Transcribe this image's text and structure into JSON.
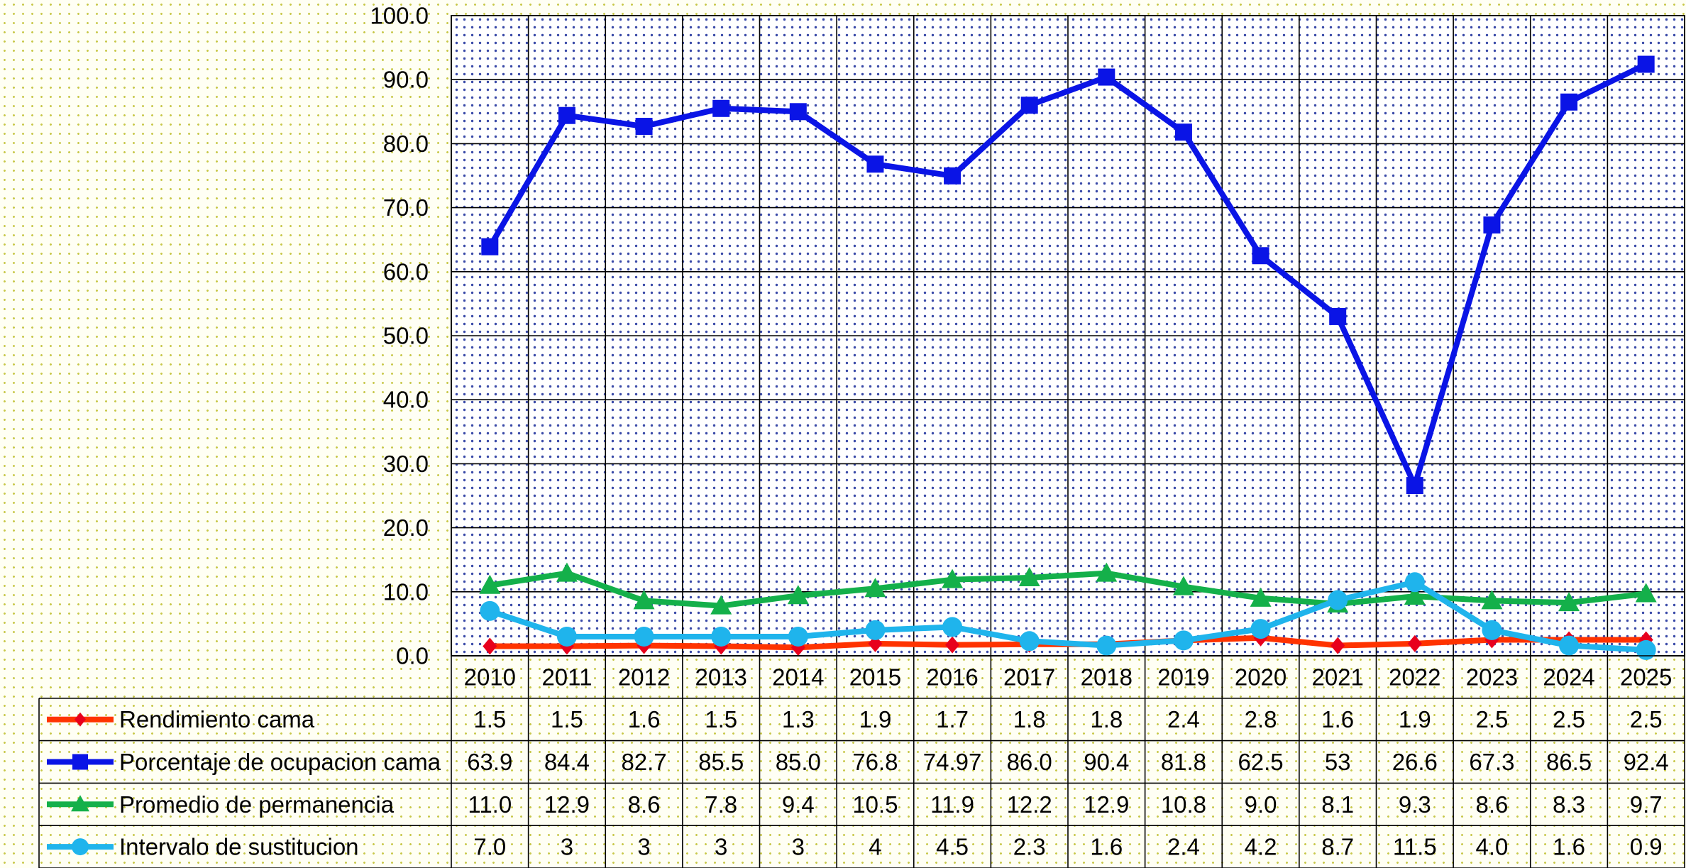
{
  "chart_data": {
    "type": "line",
    "title": "",
    "xlabel": "",
    "ylabel": "",
    "ylim": [
      0,
      100
    ],
    "y_ticks": [
      "0.0",
      "10.0",
      "20.0",
      "30.0",
      "40.0",
      "50.0",
      "60.0",
      "70.0",
      "80.0",
      "90.0",
      "100.0"
    ],
    "grid": true,
    "legend": "data-table",
    "categories": [
      "2010",
      "2011",
      "2012",
      "2013",
      "2014",
      "2015",
      "2016",
      "2017",
      "2018",
      "2019",
      "2020",
      "2021",
      "2022",
      "2023",
      "2024",
      "2025"
    ],
    "series": [
      {
        "name": "Rendimiento cama",
        "color": "#ff3300",
        "marker": "diamond",
        "marker_color": "#e8001c",
        "values": [
          1.5,
          1.5,
          1.6,
          1.5,
          1.3,
          1.9,
          1.7,
          1.8,
          1.8,
          2.4,
          2.8,
          1.6,
          1.9,
          2.5,
          2.5,
          2.5
        ],
        "labels": [
          "1.5",
          "1.5",
          "1.6",
          "1.5",
          "1.3",
          "1.9",
          "1.7",
          "1.8",
          "1.8",
          "2.4",
          "2.8",
          "1.6",
          "1.9",
          "2.5",
          "2.5",
          "2.5"
        ]
      },
      {
        "name": "Porcentaje de ocupacion cama",
        "color": "#0a14e6",
        "marker": "square",
        "marker_color": "#0a14e6",
        "values": [
          63.9,
          84.4,
          82.7,
          85.5,
          85.0,
          76.8,
          74.97,
          86.0,
          90.4,
          81.8,
          62.5,
          53,
          26.6,
          67.3,
          86.5,
          92.4
        ],
        "labels": [
          "63.9",
          "84.4",
          "82.7",
          "85.5",
          "85.0",
          "76.8",
          "74.97",
          "86.0",
          "90.4",
          "81.8",
          "62.5",
          "53",
          "26.6",
          "67.3",
          "86.5",
          "92.4"
        ]
      },
      {
        "name": "Promedio de permanencia",
        "color": "#14b04a",
        "marker": "triangle",
        "marker_color": "#14b04a",
        "values": [
          11.0,
          12.9,
          8.6,
          7.8,
          9.4,
          10.5,
          11.9,
          12.2,
          12.9,
          10.8,
          9.0,
          8.1,
          9.3,
          8.6,
          8.3,
          9.7
        ],
        "labels": [
          "11.0",
          "12.9",
          "8.6",
          "7.8",
          "9.4",
          "10.5",
          "11.9",
          "12.2",
          "12.9",
          "10.8",
          "9.0",
          "8.1",
          "9.3",
          "8.6",
          "8.3",
          "9.7"
        ]
      },
      {
        "name": "Intervalo de sustitucion",
        "color": "#1fb4ec",
        "marker": "circle",
        "marker_color": "#1fb4ec",
        "values": [
          7.0,
          3,
          3,
          3,
          3,
          4,
          4.5,
          2.3,
          1.6,
          2.4,
          4.2,
          8.7,
          11.5,
          4.0,
          1.6,
          0.9
        ],
        "labels": [
          "7.0",
          "3",
          "3",
          "3",
          "3",
          "4",
          "4.5",
          "2.3",
          "1.6",
          "2.4",
          "4.2",
          "8.7",
          "11.5",
          "4.0",
          "1.6",
          "0.9"
        ]
      }
    ]
  }
}
